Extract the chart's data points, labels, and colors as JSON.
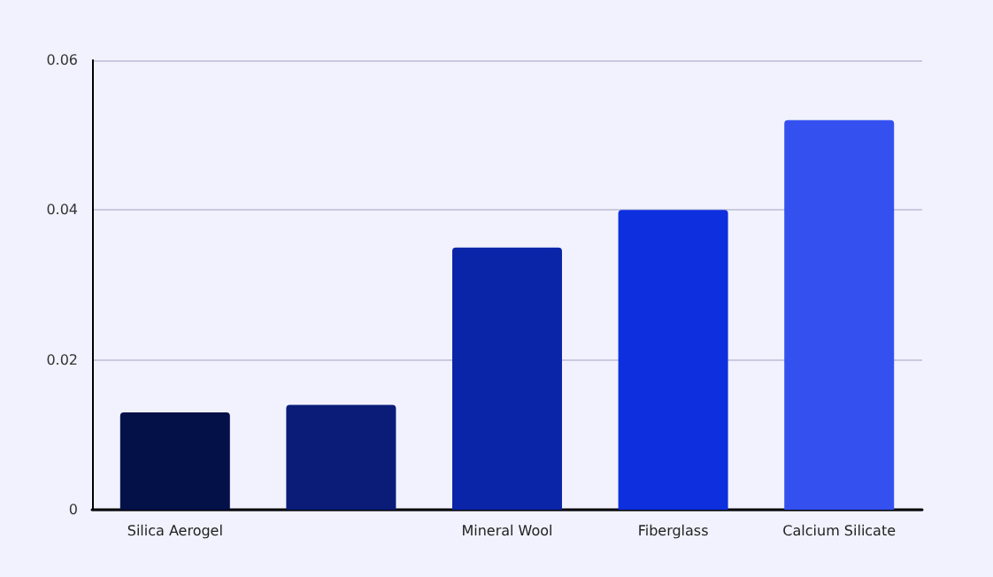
{
  "chart_data": {
    "type": "bar",
    "categories": [
      "Silica Aerogel",
      null,
      "Mineral Wool",
      "Fiberglass",
      "Calcium Silicate"
    ],
    "values": [
      0.013,
      0.014,
      0.035,
      0.04,
      0.052
    ],
    "colors": [
      "#041048",
      "#0a1c78",
      "#0b25a8",
      "#0e2fde",
      "#3451f0"
    ],
    "ylim": [
      0,
      0.06
    ],
    "yticks": [
      0,
      0.02,
      0.04,
      0.06
    ],
    "grid": "y"
  }
}
